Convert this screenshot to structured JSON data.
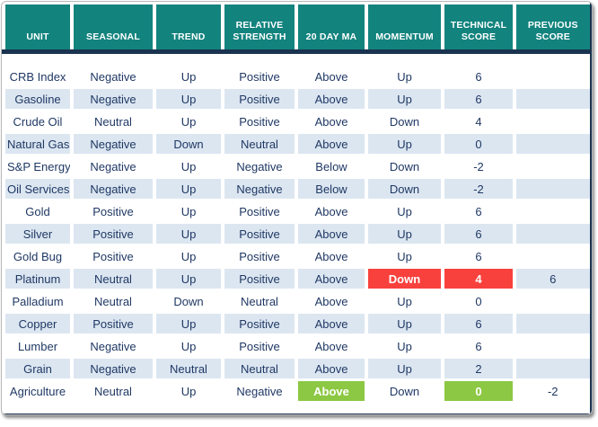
{
  "colors": {
    "header_bg": "#13837E",
    "header_text": "#FFFFFF",
    "dark_border": "#1A3350",
    "body_text": "#1F3864",
    "row_alt_bg": "#DCE6F1",
    "highlight_red": "#F8413D",
    "highlight_green": "#8CC843"
  },
  "chart_data": {
    "type": "table",
    "columns": [
      "UNIT",
      "SEASONAL",
      "TREND",
      "RELATIVE STRENGTH",
      "20 DAY MA",
      "MOMENTUM",
      "TECHNICAL SCORE",
      "PREVIOUS SCORE"
    ],
    "column_keys": [
      "unit",
      "seasonal",
      "trend",
      "relative_strength",
      "ma_20_day",
      "momentum",
      "technical_score",
      "previous_score"
    ],
    "rows": [
      {
        "unit": "CRB Index",
        "seasonal": "Negative",
        "trend": "Up",
        "relative_strength": "Positive",
        "ma_20_day": "Above",
        "momentum": "Up",
        "technical_score": "6",
        "previous_score": "",
        "highlights": {}
      },
      {
        "unit": "Gasoline",
        "seasonal": "Negative",
        "trend": "Up",
        "relative_strength": "Positive",
        "ma_20_day": "Above",
        "momentum": "Up",
        "technical_score": "6",
        "previous_score": "",
        "highlights": {}
      },
      {
        "unit": "Crude Oil",
        "seasonal": "Neutral",
        "trend": "Up",
        "relative_strength": "Positive",
        "ma_20_day": "Above",
        "momentum": "Down",
        "technical_score": "4",
        "previous_score": "",
        "highlights": {}
      },
      {
        "unit": "Natural Gas",
        "seasonal": "Negative",
        "trend": "Down",
        "relative_strength": "Neutral",
        "ma_20_day": "Above",
        "momentum": "Up",
        "technical_score": "0",
        "previous_score": "",
        "highlights": {}
      },
      {
        "unit": "S&P Energy",
        "seasonal": "Negative",
        "trend": "Up",
        "relative_strength": "Negative",
        "ma_20_day": "Below",
        "momentum": "Down",
        "technical_score": "-2",
        "previous_score": "",
        "highlights": {}
      },
      {
        "unit": "Oil Services",
        "seasonal": "Negative",
        "trend": "Up",
        "relative_strength": "Negative",
        "ma_20_day": "Below",
        "momentum": "Down",
        "technical_score": "-2",
        "previous_score": "",
        "highlights": {}
      },
      {
        "unit": "Gold",
        "seasonal": "Positive",
        "trend": "Up",
        "relative_strength": "Positive",
        "ma_20_day": "Above",
        "momentum": "Up",
        "technical_score": "6",
        "previous_score": "",
        "highlights": {}
      },
      {
        "unit": "Silver",
        "seasonal": "Positive",
        "trend": "Up",
        "relative_strength": "Positive",
        "ma_20_day": "Above",
        "momentum": "Up",
        "technical_score": "6",
        "previous_score": "",
        "highlights": {}
      },
      {
        "unit": "Gold Bug",
        "seasonal": "Positive",
        "trend": "Up",
        "relative_strength": "Positive",
        "ma_20_day": "Above",
        "momentum": "Up",
        "technical_score": "6",
        "previous_score": "",
        "highlights": {}
      },
      {
        "unit": "Platinum",
        "seasonal": "Neutral",
        "trend": "Up",
        "relative_strength": "Positive",
        "ma_20_day": "Above",
        "momentum": "Down",
        "technical_score": "4",
        "previous_score": "6",
        "highlights": {
          "momentum": "red",
          "technical_score": "red"
        }
      },
      {
        "unit": "Palladium",
        "seasonal": "Neutral",
        "trend": "Down",
        "relative_strength": "Neutral",
        "ma_20_day": "Above",
        "momentum": "Up",
        "technical_score": "0",
        "previous_score": "",
        "highlights": {}
      },
      {
        "unit": "Copper",
        "seasonal": "Positive",
        "trend": "Up",
        "relative_strength": "Positive",
        "ma_20_day": "Above",
        "momentum": "Up",
        "technical_score": "6",
        "previous_score": "",
        "highlights": {}
      },
      {
        "unit": "Lumber",
        "seasonal": "Negative",
        "trend": "Up",
        "relative_strength": "Positive",
        "ma_20_day": "Above",
        "momentum": "Up",
        "technical_score": "6",
        "previous_score": "",
        "highlights": {}
      },
      {
        "unit": "Grain",
        "seasonal": "Negative",
        "trend": "Neutral",
        "relative_strength": "Neutral",
        "ma_20_day": "Above",
        "momentum": "Up",
        "technical_score": "2",
        "previous_score": "",
        "highlights": {}
      },
      {
        "unit": "Agriculture",
        "seasonal": "Neutral",
        "trend": "Up",
        "relative_strength": "Negative",
        "ma_20_day": "Above",
        "momentum": "Down",
        "technical_score": "0",
        "previous_score": "-2",
        "highlights": {
          "ma_20_day": "green",
          "technical_score": "green"
        }
      }
    ]
  }
}
